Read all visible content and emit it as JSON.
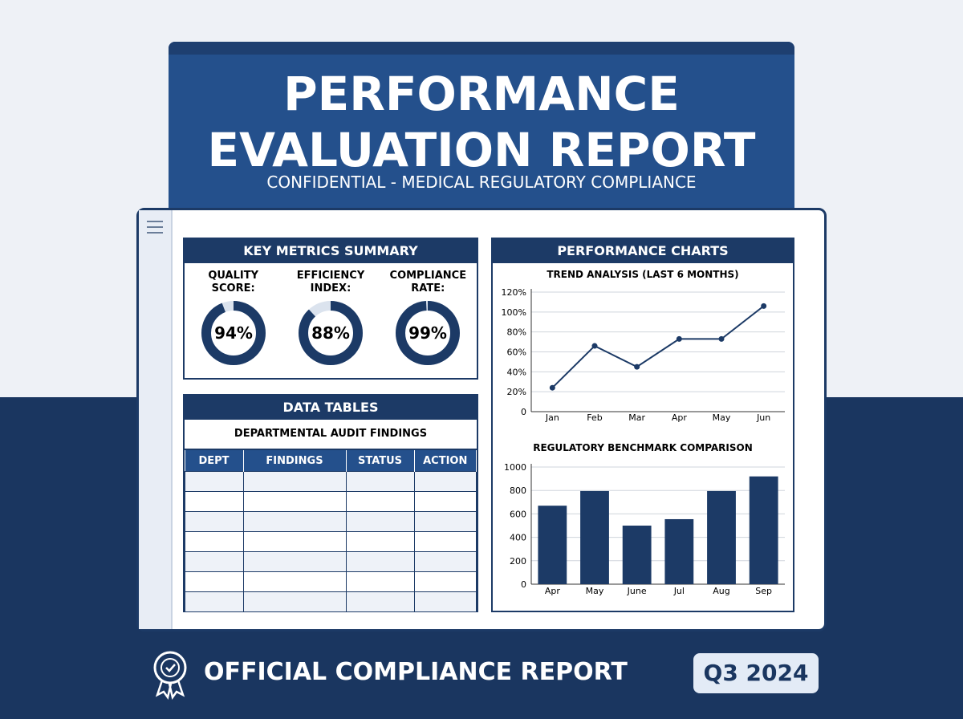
{
  "header": {
    "title": "PERFORMANCE EVALUATION REPORT",
    "subtitle": "CONFIDENTIAL - MEDICAL REGULATORY COMPLIANCE"
  },
  "metrics": {
    "title": "KEY METRICS SUMMARY",
    "items": [
      {
        "label": "QUALITY SCORE:",
        "value": 94,
        "value_label": "94%"
      },
      {
        "label": "EFFICIENCY INDEX:",
        "value": 88,
        "value_label": "88%"
      },
      {
        "label": "COMPLIANCE RATE:",
        "value": 99,
        "value_label": "99%"
      }
    ]
  },
  "table": {
    "title": "DATA TABLES",
    "subtitle": "DEPARTMENTAL AUDIT FINDINGS",
    "headers": [
      "DEPT",
      "FINDINGS",
      "STATUS",
      "ACTION"
    ]
  },
  "charts_panel": {
    "title": "PERFORMANCE CHARTS"
  },
  "chart_data": [
    {
      "type": "line",
      "title": "TREND ANALYSIS (LAST 6 MONTHS)",
      "categories": [
        "Jan",
        "Feb",
        "Mar",
        "Apr",
        "May",
        "Jun"
      ],
      "values": [
        24,
        66,
        45,
        73,
        73,
        106
      ],
      "color": "#1c3a66",
      "ylim": [
        0,
        120
      ],
      "yticks": [
        0,
        {
          "value": 20,
          "label": "20%"
        },
        {
          "value": 40,
          "label": "40%"
        },
        {
          "value": 60,
          "label": "60%"
        },
        {
          "value": 80,
          "label": "80%"
        },
        {
          "value": 100,
          "label": "100%"
        },
        {
          "value": 120,
          "label": "120%"
        }
      ],
      "grid": true
    },
    {
      "type": "bar",
      "title": "REGULATORY BENCHMARK COMPARISON",
      "categories": [
        "Apr",
        "May",
        "June",
        "Jul",
        "Aug",
        "Sep"
      ],
      "values": [
        670,
        795,
        500,
        555,
        795,
        920
      ],
      "color": "#1c3a66",
      "ylim": [
        0,
        1000
      ],
      "yticks": [
        0,
        200,
        400,
        600,
        800,
        1000
      ],
      "grid": true
    }
  ],
  "footer": {
    "label": "OFFICIAL COMPLIANCE REPORT",
    "period": "Q3 2024"
  }
}
